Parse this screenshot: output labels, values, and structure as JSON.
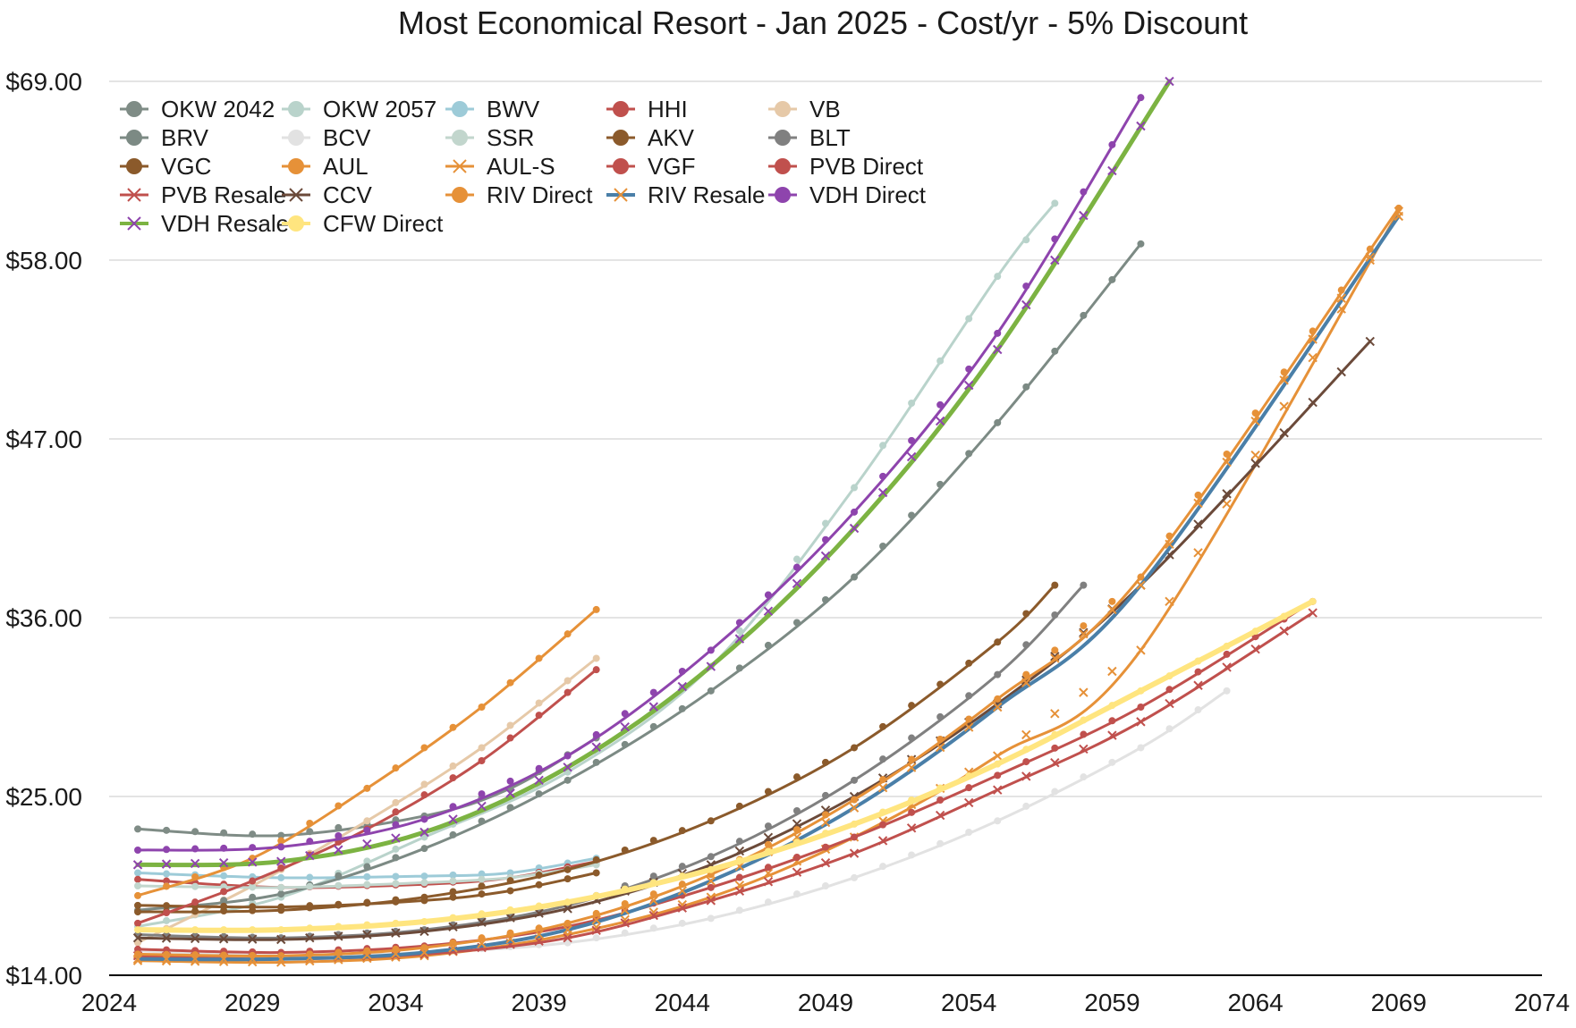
{
  "chart_data": {
    "type": "line",
    "title": "Most Economical Resort - Jan 2025 - Cost/yr - 5% Discount",
    "xlabel": "",
    "ylabel": "",
    "xlim": [
      2024,
      2074
    ],
    "ylim": [
      14,
      69
    ],
    "x_ticks": [
      "2024",
      "2029",
      "2034",
      "2039",
      "2044",
      "2049",
      "2054",
      "2059",
      "2064",
      "2069",
      "2074"
    ],
    "y_ticks": [
      "$14.00",
      "$25.00",
      "$36.00",
      "$47.00",
      "$58.00",
      "$69.00"
    ],
    "grid": "horizontal",
    "legend_position": "top-left",
    "series": [
      {
        "name": "OKW 2042",
        "marker": "circle",
        "color": "#7f8c86",
        "width": 3,
        "x": [
          2025,
          2030,
          2035,
          2038,
          2041
        ],
        "y": [
          23.0,
          22.6,
          23.8,
          25.5,
          28.6
        ]
      },
      {
        "name": "OKW 2057",
        "marker": "circle",
        "color": "#b9d3cb",
        "width": 3,
        "x": [
          2025,
          2030,
          2035,
          2040,
          2045,
          2050,
          2055,
          2057
        ],
        "y": [
          17.0,
          18.8,
          22.5,
          26.5,
          33.0,
          44.0,
          57.0,
          61.5
        ]
      },
      {
        "name": "BWV",
        "marker": "circle",
        "color": "#9dcbd8",
        "width": 3,
        "x": [
          2025,
          2030,
          2035,
          2038,
          2041
        ],
        "y": [
          20.3,
          20.0,
          20.1,
          20.3,
          21.2
        ]
      },
      {
        "name": "HHI",
        "marker": "circle",
        "color": "#c0504d",
        "width": 3,
        "x": [
          2025,
          2030,
          2035,
          2038,
          2041
        ],
        "y": [
          19.9,
          19.4,
          19.6,
          20.0,
          21.0
        ]
      },
      {
        "name": "VB",
        "marker": "circle",
        "color": "#e6c9a8",
        "width": 3,
        "x": [
          2025,
          2029,
          2033,
          2037,
          2041
        ],
        "y": [
          16.0,
          19.5,
          23.5,
          28.0,
          33.5
        ]
      },
      {
        "name": "BRV",
        "marker": "circle",
        "color": "#7c8a84",
        "width": 3,
        "x": [
          2025,
          2030,
          2035,
          2040,
          2045,
          2050,
          2055,
          2060
        ],
        "y": [
          18.0,
          19.0,
          21.8,
          26.0,
          31.5,
          38.5,
          48.0,
          59.0
        ]
      },
      {
        "name": "BCV",
        "marker": "circle",
        "color": "#e2e2e2",
        "width": 3,
        "x": [
          2025,
          2030,
          2035,
          2040,
          2045,
          2050,
          2055,
          2060,
          2063
        ],
        "y": [
          15.5,
          15.2,
          15.4,
          16.0,
          17.5,
          20.0,
          23.5,
          28.0,
          31.5
        ]
      },
      {
        "name": "SSR",
        "marker": "circle",
        "color": "#c2d6cd",
        "width": 3,
        "x": [
          2025,
          2030,
          2035,
          2038,
          2041
        ],
        "y": [
          19.5,
          19.4,
          19.7,
          20.0,
          20.8
        ]
      },
      {
        "name": "AKV",
        "marker": "circle",
        "color": "#8b5a2b",
        "width": 3,
        "x": [
          2025,
          2030,
          2035,
          2040,
          2045,
          2050,
          2055,
          2057
        ],
        "y": [
          17.9,
          18.0,
          18.8,
          20.5,
          23.5,
          28.0,
          34.5,
          38.0
        ]
      },
      {
        "name": "BLT",
        "marker": "circle",
        "color": "#808080",
        "width": 3,
        "x": [
          2025,
          2030,
          2035,
          2040,
          2045,
          2050,
          2055,
          2058
        ],
        "y": [
          16.5,
          16.3,
          16.8,
          18.3,
          21.3,
          26.0,
          32.5,
          38.0
        ]
      },
      {
        "name": "VGC",
        "marker": "circle",
        "color": "#8b5a2b",
        "width": 3,
        "x": [
          2025,
          2030,
          2035,
          2038,
          2041
        ],
        "y": [
          18.3,
          18.2,
          18.6,
          19.2,
          20.3
        ]
      },
      {
        "name": "AUL",
        "marker": "circle",
        "color": "#e69138",
        "width": 3,
        "x": [
          2025,
          2029,
          2033,
          2037,
          2041
        ],
        "y": [
          18.9,
          21.2,
          25.5,
          30.5,
          36.5
        ]
      },
      {
        "name": "AUL-S",
        "marker": "x",
        "color": "#e69138",
        "width": 3,
        "x": [
          2025,
          2030,
          2035,
          2040,
          2045,
          2050,
          2055,
          2060,
          2069
        ],
        "y": [
          14.9,
          14.8,
          15.2,
          16.5,
          18.8,
          22.5,
          27.5,
          34.0,
          61.0
        ]
      },
      {
        "name": "VGF",
        "marker": "circle",
        "color": "#c0504d",
        "width": 3,
        "x": [
          2025,
          2029,
          2033,
          2037,
          2041
        ],
        "y": [
          17.2,
          19.8,
          23.0,
          27.2,
          32.8
        ]
      },
      {
        "name": "PVB Direct",
        "marker": "circle",
        "color": "#c0504d",
        "width": 3,
        "x": [
          2025,
          2030,
          2035,
          2040,
          2045,
          2050,
          2055,
          2060,
          2066
        ],
        "y": [
          15.6,
          15.4,
          15.8,
          17.0,
          19.4,
          22.5,
          26.3,
          30.5,
          37.0
        ]
      },
      {
        "name": "PVB Resale",
        "marker": "x",
        "color": "#c0504d",
        "width": 3,
        "x": [
          2025,
          2030,
          2035,
          2040,
          2045,
          2050,
          2055,
          2060,
          2066
        ],
        "y": [
          15.2,
          15.0,
          15.3,
          16.3,
          18.6,
          21.5,
          25.4,
          29.6,
          36.3
        ]
      },
      {
        "name": "CCV",
        "marker": "x",
        "color": "#6b4a3a",
        "width": 3,
        "x": [
          2025,
          2030,
          2035,
          2040,
          2045,
          2050,
          2055,
          2060,
          2068
        ],
        "y": [
          16.3,
          16.2,
          16.7,
          18.1,
          20.8,
          25.0,
          30.7,
          38.0,
          53.0
        ]
      },
      {
        "name": "RIV Direct",
        "marker": "circle",
        "color": "#e69138",
        "width": 3,
        "x": [
          2025,
          2030,
          2035,
          2040,
          2045,
          2050,
          2055,
          2060,
          2069
        ],
        "y": [
          15.3,
          15.2,
          15.7,
          17.2,
          20.2,
          24.8,
          31.0,
          38.5,
          61.2
        ]
      },
      {
        "name": "RIV Resale",
        "marker": "x",
        "color": "#4a7fa8",
        "width": 4,
        "x": [
          2025,
          2030,
          2035,
          2040,
          2045,
          2050,
          2055,
          2060,
          2069
        ],
        "y": [
          15.0,
          15.0,
          15.4,
          16.8,
          19.8,
          24.3,
          30.5,
          38.0,
          60.7
        ]
      },
      {
        "name": "VDH Direct",
        "marker": "circle",
        "color": "#8e44ad",
        "width": 3,
        "x": [
          2025,
          2030,
          2035,
          2040,
          2045,
          2050,
          2055,
          2060
        ],
        "y": [
          21.7,
          21.9,
          23.6,
          27.5,
          34.0,
          42.5,
          53.5,
          68.0
        ]
      },
      {
        "name": "VDH Resale",
        "marker": "x",
        "color": "#7cb342",
        "width": 5,
        "x": [
          2025,
          2030,
          2035,
          2040,
          2045,
          2050,
          2055,
          2061
        ],
        "y": [
          20.8,
          21.0,
          22.8,
          26.8,
          33.0,
          41.5,
          52.5,
          69.0
        ]
      },
      {
        "name": "CFW Direct",
        "marker": "circle",
        "color": "#ffe57f",
        "width": 6,
        "x": [
          2025,
          2030,
          2035,
          2040,
          2045,
          2050,
          2055,
          2060,
          2066
        ],
        "y": [
          16.8,
          16.8,
          17.3,
          18.5,
          20.5,
          23.3,
          27.0,
          31.5,
          37.0
        ]
      }
    ]
  }
}
